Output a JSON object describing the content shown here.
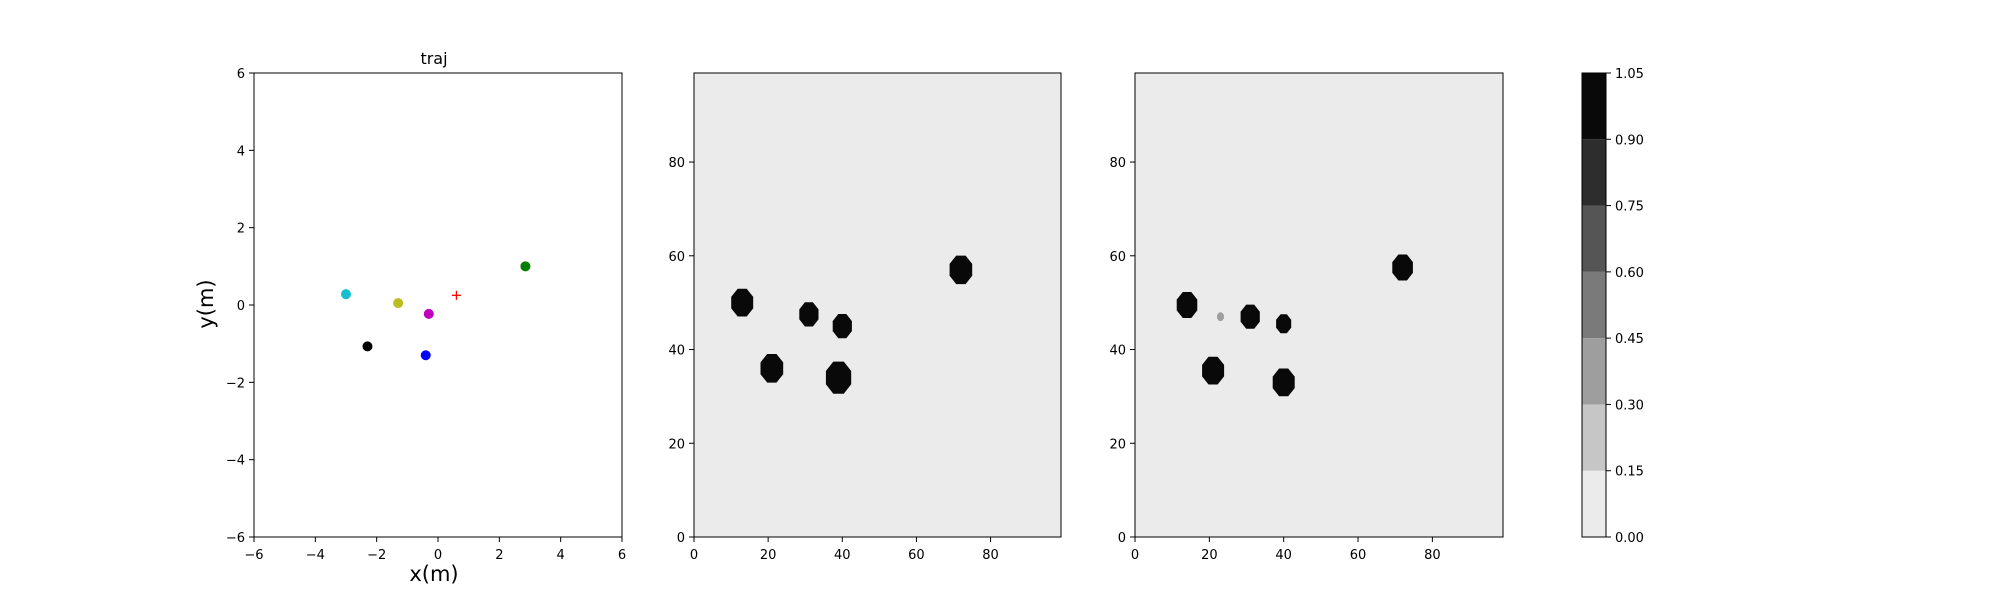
{
  "chart_data": [
    {
      "type": "scatter",
      "title": "traj",
      "xlabel": "x(m)",
      "ylabel": "y(m)",
      "xlim": [
        -6,
        6
      ],
      "ylim": [
        -6,
        6
      ],
      "xticks": [
        -6,
        -4,
        -2,
        0,
        2,
        4,
        6
      ],
      "yticks": [
        -6,
        -4,
        -2,
        0,
        2,
        4,
        6
      ],
      "grid": false,
      "points": [
        {
          "x": -3.0,
          "y": 0.28,
          "color": "#17becf",
          "marker": "circle"
        },
        {
          "x": -1.3,
          "y": 0.05,
          "color": "#bcbd22",
          "marker": "circle"
        },
        {
          "x": -0.3,
          "y": -0.23,
          "color": "#bf00bf",
          "marker": "circle"
        },
        {
          "x": 2.85,
          "y": 1.0,
          "color": "#008000",
          "marker": "circle"
        },
        {
          "x": -2.3,
          "y": -1.07,
          "color": "#000000",
          "marker": "circle"
        },
        {
          "x": -0.4,
          "y": -1.3,
          "color": "#0000ff",
          "marker": "circle"
        },
        {
          "x": 0.6,
          "y": 0.25,
          "color": "#ff0000",
          "marker": "plus"
        }
      ]
    },
    {
      "type": "heatmap",
      "xlim": [
        0,
        99
      ],
      "ylim": [
        0,
        99
      ],
      "xticks": [
        0,
        20,
        40,
        60,
        80
      ],
      "yticks": [
        0,
        20,
        40,
        60,
        80
      ],
      "background_value": 0.05,
      "blobs": [
        {
          "cx": 13,
          "cy": 50,
          "r": 3.2,
          "value": 1.0
        },
        {
          "cx": 31,
          "cy": 47.5,
          "r": 2.8,
          "value": 1.0
        },
        {
          "cx": 40,
          "cy": 45,
          "r": 2.8,
          "value": 1.0
        },
        {
          "cx": 72,
          "cy": 57,
          "r": 3.3,
          "value": 1.0
        },
        {
          "cx": 21,
          "cy": 36,
          "r": 3.3,
          "value": 1.0
        },
        {
          "cx": 39,
          "cy": 34,
          "r": 3.7,
          "value": 1.0
        }
      ]
    },
    {
      "type": "heatmap",
      "xlim": [
        0,
        99
      ],
      "ylim": [
        0,
        99
      ],
      "xticks": [
        0,
        20,
        40,
        60,
        80
      ],
      "yticks": [
        0,
        20,
        40,
        60,
        80
      ],
      "background_value": 0.05,
      "blobs": [
        {
          "cx": 14,
          "cy": 49.5,
          "r": 3.0,
          "value": 1.0
        },
        {
          "cx": 31,
          "cy": 47,
          "r": 2.8,
          "value": 1.0
        },
        {
          "cx": 40,
          "cy": 45.5,
          "r": 2.2,
          "value": 0.9
        },
        {
          "cx": 72,
          "cy": 57.5,
          "r": 3.0,
          "value": 1.0
        },
        {
          "cx": 21,
          "cy": 35.5,
          "r": 3.2,
          "value": 1.0
        },
        {
          "cx": 40,
          "cy": 33,
          "r": 3.2,
          "value": 1.0
        },
        {
          "cx": 23,
          "cy": 47,
          "r": 1.0,
          "value": 0.35
        }
      ]
    },
    {
      "type": "colorbar",
      "levels": [
        0.0,
        0.15,
        0.3,
        0.45,
        0.6,
        0.75,
        0.9,
        1.05
      ],
      "tick_labels": [
        "0.00",
        "0.15",
        "0.30",
        "0.45",
        "0.60",
        "0.75",
        "0.90",
        "1.05"
      ],
      "colors": [
        "#ebebeb",
        "#c6c6c6",
        "#9e9e9e",
        "#7a7a7a",
        "#555555",
        "#2d2d2d",
        "#090909"
      ]
    }
  ]
}
